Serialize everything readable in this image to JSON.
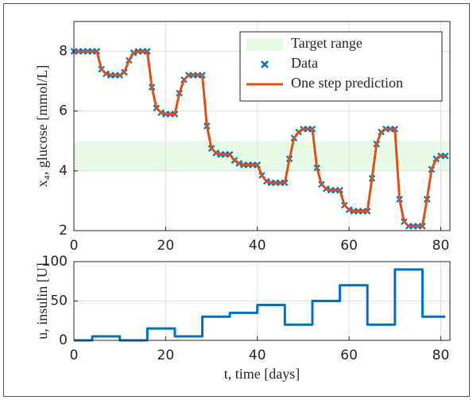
{
  "chart_data": [
    {
      "type": "line",
      "ylabel": "x₄, glucose [mmol/L]",
      "x": [
        0,
        1,
        2,
        3,
        4,
        5,
        6,
        7,
        8,
        9,
        10,
        11,
        12,
        13,
        14,
        15,
        16,
        17,
        18,
        19,
        20,
        21,
        22,
        23,
        24,
        25,
        26,
        27,
        28,
        29,
        30,
        31,
        32,
        33,
        34,
        35,
        36,
        37,
        38,
        39,
        40,
        41,
        42,
        43,
        44,
        45,
        46,
        47,
        48,
        49,
        50,
        51,
        52,
        53,
        54,
        55,
        56,
        57,
        58,
        59,
        60,
        61,
        62,
        63,
        64,
        65,
        66,
        67,
        68,
        69,
        70,
        71,
        72,
        73,
        74,
        75,
        76,
        77,
        78,
        79,
        80,
        81
      ],
      "target_range": {
        "name": "Target range",
        "values": [
          4,
          5
        ],
        "color": "#e6fae6"
      },
      "series": [
        {
          "name": "Data",
          "color": "#0072bd",
          "marker": "x",
          "values": [
            8,
            8,
            8,
            8,
            8,
            8,
            7.4,
            7.25,
            7.2,
            7.2,
            7.2,
            7.3,
            7.7,
            7.95,
            8,
            8,
            8,
            6.8,
            6.1,
            5.95,
            5.9,
            5.9,
            5.9,
            6.6,
            7.05,
            7.2,
            7.2,
            7.2,
            7.2,
            5.5,
            4.75,
            4.6,
            4.55,
            4.55,
            4.55,
            4.35,
            4.25,
            4.2,
            4.2,
            4.2,
            4.2,
            3.85,
            3.65,
            3.6,
            3.6,
            3.6,
            3.6,
            4.4,
            5.1,
            5.3,
            5.4,
            5.4,
            5.4,
            4.1,
            3.55,
            3.4,
            3.35,
            3.35,
            3.35,
            2.85,
            2.7,
            2.65,
            2.65,
            2.65,
            2.65,
            3.75,
            4.9,
            5.3,
            5.4,
            5.4,
            5.4,
            3.05,
            2.3,
            2.15,
            2.15,
            2.15,
            2.15,
            3.05,
            4.05,
            4.4,
            4.5,
            4.5
          ]
        },
        {
          "name": "One step prediction",
          "color": "#d95319",
          "values": [
            8,
            8,
            8,
            8,
            8,
            8,
            7.4,
            7.25,
            7.2,
            7.2,
            7.2,
            7.3,
            7.7,
            7.95,
            8,
            8,
            8,
            6.8,
            6.1,
            5.95,
            5.9,
            5.9,
            5.9,
            6.6,
            7.05,
            7.2,
            7.2,
            7.2,
            7.2,
            5.5,
            4.75,
            4.6,
            4.55,
            4.55,
            4.55,
            4.35,
            4.25,
            4.2,
            4.2,
            4.2,
            4.2,
            3.85,
            3.65,
            3.6,
            3.6,
            3.6,
            3.6,
            4.4,
            5.1,
            5.3,
            5.4,
            5.4,
            5.4,
            4.1,
            3.55,
            3.4,
            3.35,
            3.35,
            3.35,
            2.85,
            2.7,
            2.65,
            2.65,
            2.65,
            2.65,
            3.75,
            4.9,
            5.3,
            5.4,
            5.4,
            5.4,
            3.05,
            2.3,
            2.15,
            2.15,
            2.15,
            2.15,
            3.05,
            4.05,
            4.4,
            4.5,
            4.5
          ]
        }
      ],
      "xlim": [
        0,
        82
      ],
      "xticks": [
        0,
        20,
        40,
        60,
        80
      ],
      "ylim": [
        2,
        9
      ],
      "yticks": [
        2,
        4,
        6,
        8
      ],
      "grid": true,
      "legend": "upper right"
    },
    {
      "type": "line",
      "ylabel": "u, insulin [U]",
      "xlabel": "t, time [days]",
      "step": "post",
      "x": [
        0,
        4,
        10,
        16,
        22,
        28,
        34,
        40,
        46,
        52,
        58,
        64,
        70,
        76,
        81
      ],
      "series": [
        {
          "color": "#0072bd",
          "values": [
            0,
            5,
            0,
            15,
            5,
            30,
            35,
            45,
            20,
            50,
            70,
            20,
            90,
            30,
            30
          ]
        }
      ],
      "xlim": [
        0,
        82
      ],
      "xticks": [
        0,
        20,
        40,
        60,
        80
      ],
      "ylim": [
        0,
        100
      ],
      "yticks": [
        0,
        50,
        100
      ],
      "grid": true
    }
  ]
}
